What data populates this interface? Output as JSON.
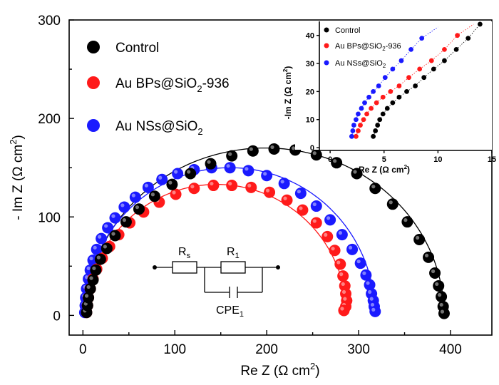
{
  "chart_data": {
    "type": "scatter",
    "title": "",
    "xlabel_main": "Re Z (",
    "xlabel_unit": "Ω cm",
    "xlabel_sup": "2",
    "xlabel_close": ")",
    "ylabel_main": "- Im Z (",
    "ylabel_unit": "Ω cm",
    "ylabel_sup": "2",
    "ylabel_close": ")",
    "xlim": [
      -15,
      445
    ],
    "ylim": [
      -20,
      300
    ],
    "xticks": [
      "0",
      "100",
      "200",
      "300",
      "400"
    ],
    "yticks": [
      "0",
      "100",
      "200",
      "300"
    ],
    "grid": false,
    "legend_position": "top-left",
    "series": [
      {
        "name": "Control",
        "color": "#000000",
        "fit": {
          "x0": 4,
          "x1": 393,
          "peak": 170
        },
        "x": [
          4,
          5,
          6,
          8,
          11,
          14,
          19,
          26,
          35,
          47,
          61,
          78,
          97,
          117,
          139,
          162,
          185,
          208,
          231,
          254,
          276,
          298,
          318,
          337,
          353,
          366,
          376,
          383,
          387,
          390,
          392,
          393
        ],
        "y": [
          3,
          10,
          18,
          27,
          36,
          46,
          57,
          68,
          81,
          95,
          108,
          121,
          133,
          144,
          154,
          162,
          167,
          169,
          168,
          163,
          155,
          144,
          129,
          113,
          95,
          77,
          59,
          43,
          30,
          19,
          9,
          2
        ]
      },
      {
        "name": "Au BPs@SiO",
        "name_sub": "2",
        "name_suffix": "-936",
        "color": "#ff1a1a",
        "fit": {
          "x0": 4,
          "x1": 287,
          "peak": 133
        },
        "x": [
          4,
          5,
          6,
          8,
          11,
          15,
          21,
          29,
          39,
          51,
          66,
          83,
          101,
          121,
          142,
          162,
          183,
          203,
          222,
          239,
          254,
          266,
          274,
          280,
          283,
          285,
          286,
          287,
          286,
          284
        ],
        "y": [
          3,
          10,
          18,
          27,
          37,
          47,
          58,
          70,
          82,
          94,
          105,
          115,
          123,
          129,
          132,
          132,
          130,
          125,
          117,
          107,
          94,
          80,
          66,
          52,
          40,
          30,
          22,
          15,
          9,
          5
        ]
      },
      {
        "name": "Au NSs@SiO",
        "name_sub": "2",
        "name_suffix": "",
        "color": "#1a1aff",
        "fit": {
          "x0": 2,
          "x1": 318,
          "peak": 150
        },
        "x": [
          2,
          2.5,
          3,
          4,
          6,
          8,
          11,
          15,
          20,
          27,
          35,
          45,
          57,
          71,
          86,
          103,
          121,
          140,
          160,
          180,
          200,
          219,
          237,
          254,
          269,
          282,
          293,
          302,
          308,
          312,
          314,
          316,
          317,
          318
        ],
        "y": [
          3,
          10,
          18,
          27,
          37,
          46,
          56,
          67,
          78,
          89,
          99,
          110,
          120,
          130,
          138,
          144,
          148,
          150,
          150,
          147,
          142,
          134,
          124,
          111,
          97,
          82,
          67,
          53,
          41,
          31,
          22,
          15,
          9,
          4
        ]
      }
    ],
    "inset": {
      "xlabel_main": "Re Z (",
      "xlabel_unit": "Ω cm",
      "xlabel_sup": "2",
      "xlabel_close": ")",
      "ylabel_main": "-Im Z (",
      "ylabel_unit": "Ω cm",
      "ylabel_sup": "2",
      "ylabel_close": ")",
      "xlim": [
        -1,
        15
      ],
      "ylim": [
        -1,
        45
      ],
      "xticks": [
        "0",
        "5",
        "10",
        "15"
      ],
      "yticks": [
        "0",
        "10",
        "20",
        "30",
        "40"
      ],
      "series": [
        {
          "name": "Control",
          "color": "#000000",
          "x": [
            4.0,
            4.2,
            4.4,
            4.6,
            4.9,
            5.3,
            5.8,
            6.4,
            7.1,
            7.9,
            8.7,
            9.6,
            10.6,
            11.7,
            12.8,
            13.9
          ],
          "y": [
            4,
            6,
            8,
            10,
            12,
            14,
            16,
            18,
            20,
            22,
            25,
            28,
            31,
            35,
            39,
            44
          ]
        },
        {
          "name": "Au BPs@SiO",
          "name_sub": "2",
          "name_suffix": "-936",
          "color": "#ff1a1a",
          "x": [
            2.4,
            2.6,
            2.8,
            3.1,
            3.4,
            3.8,
            4.3,
            4.9,
            5.6,
            6.4,
            7.3,
            8.3,
            9.4,
            10.6,
            11.8
          ],
          "y": [
            4,
            6,
            8,
            10,
            12,
            14,
            16,
            18,
            20,
            22,
            25,
            28,
            31,
            35,
            40
          ]
        },
        {
          "name": "Au NSs@SiO",
          "name_sub": "2",
          "name_suffix": "",
          "color": "#1a1aff",
          "x": [
            2.0,
            2.1,
            2.2,
            2.4,
            2.6,
            2.9,
            3.2,
            3.6,
            4.0,
            4.5,
            5.1,
            5.8,
            6.6,
            7.5,
            8.5
          ],
          "y": [
            4,
            6,
            8,
            10,
            12,
            14,
            16,
            18,
            20,
            22,
            25,
            28,
            31,
            35,
            39
          ]
        }
      ]
    },
    "circuit": {
      "r_s": "R",
      "r_s_sub": "s",
      "r_1": "R",
      "r_1_sub": "1",
      "cpe": "CPE",
      "cpe_sub": "1"
    }
  }
}
